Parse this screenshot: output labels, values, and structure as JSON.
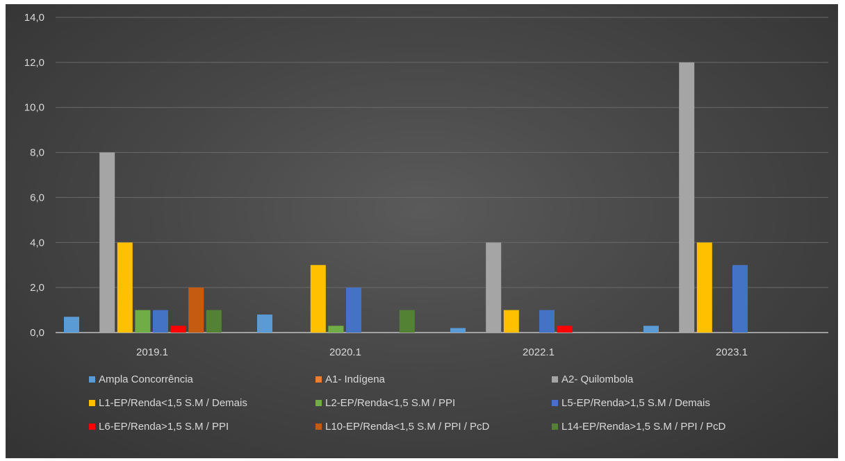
{
  "chart_data": {
    "type": "bar",
    "categories": [
      "2019.1",
      "2020.1",
      "2022.1",
      "2023.1"
    ],
    "ylim": [
      0,
      14
    ],
    "y_ticks": [
      "0,0",
      "2,0",
      "4,0",
      "6,0",
      "8,0",
      "10,0",
      "12,0",
      "14,0"
    ],
    "grid": true,
    "legend_position": "bottom",
    "series": [
      {
        "name": "Ampla Concorrência",
        "color": "#5b9bd5",
        "values": [
          0.7,
          0.8,
          0.2,
          0.3
        ]
      },
      {
        "name": "A1- Indígena",
        "color": "#ed7d31",
        "values": [
          0,
          0,
          0,
          0
        ]
      },
      {
        "name": "A2- Quilombola",
        "color": "#a5a5a5",
        "values": [
          8,
          0,
          4,
          12
        ]
      },
      {
        "name": "L1-EP/Renda<1,5 S.M / Demais",
        "color": "#ffc000",
        "values": [
          4,
          3,
          1,
          4
        ]
      },
      {
        "name": "L2-EP/Renda<1,5 S.M / PPI",
        "color": "#70ad47",
        "values": [
          1,
          0.3,
          0,
          0
        ]
      },
      {
        "name": "L5-EP/Renda>1,5 S.M / Demais",
        "color": "#4472c4",
        "values": [
          1,
          2,
          1,
          3
        ]
      },
      {
        "name": "L6-EP/Renda>1,5 S.M / PPI",
        "color": "#ff0000",
        "values": [
          0.3,
          0,
          0.3,
          0
        ]
      },
      {
        "name": "L10-EP/Renda<1,5 S.M / PPI / PcD",
        "color": "#c55a11",
        "values": [
          2,
          0,
          0,
          0
        ]
      },
      {
        "name": "L14-EP/Renda>1,5 S.M / PPI / PcD",
        "color": "#548235",
        "values": [
          1,
          1,
          0,
          0
        ]
      }
    ]
  }
}
